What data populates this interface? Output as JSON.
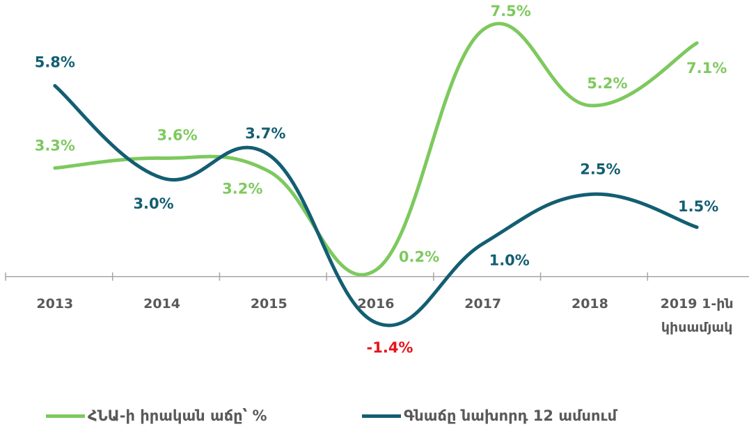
{
  "chart_data": {
    "type": "line",
    "categories": [
      "2013",
      "2014",
      "2015",
      "2016",
      "2017",
      "2018",
      "2019 1-ին կիսամյակ"
    ],
    "series": [
      {
        "name": "ՀՆԱ-ի իրական աճը՝ %",
        "color": "#7dc95e",
        "values": [
          3.3,
          3.6,
          3.2,
          0.2,
          7.5,
          5.2,
          7.1
        ],
        "value_labels": [
          "3.3%",
          "3.6%",
          "3.2%",
          "0.2%",
          "7.5%",
          "5.2%",
          "7.1%"
        ]
      },
      {
        "name": "Գնաճը նախորդ 12 ամսում",
        "color": "#135e72",
        "negative_label_color": "#e8131b",
        "values": [
          5.8,
          3.0,
          3.7,
          -1.4,
          1.0,
          2.5,
          1.5
        ],
        "value_labels": [
          "5.8%",
          "3.0%",
          "3.7%",
          "-1.4%",
          "1.0%",
          "2.5%",
          "1.5%"
        ]
      }
    ]
  }
}
